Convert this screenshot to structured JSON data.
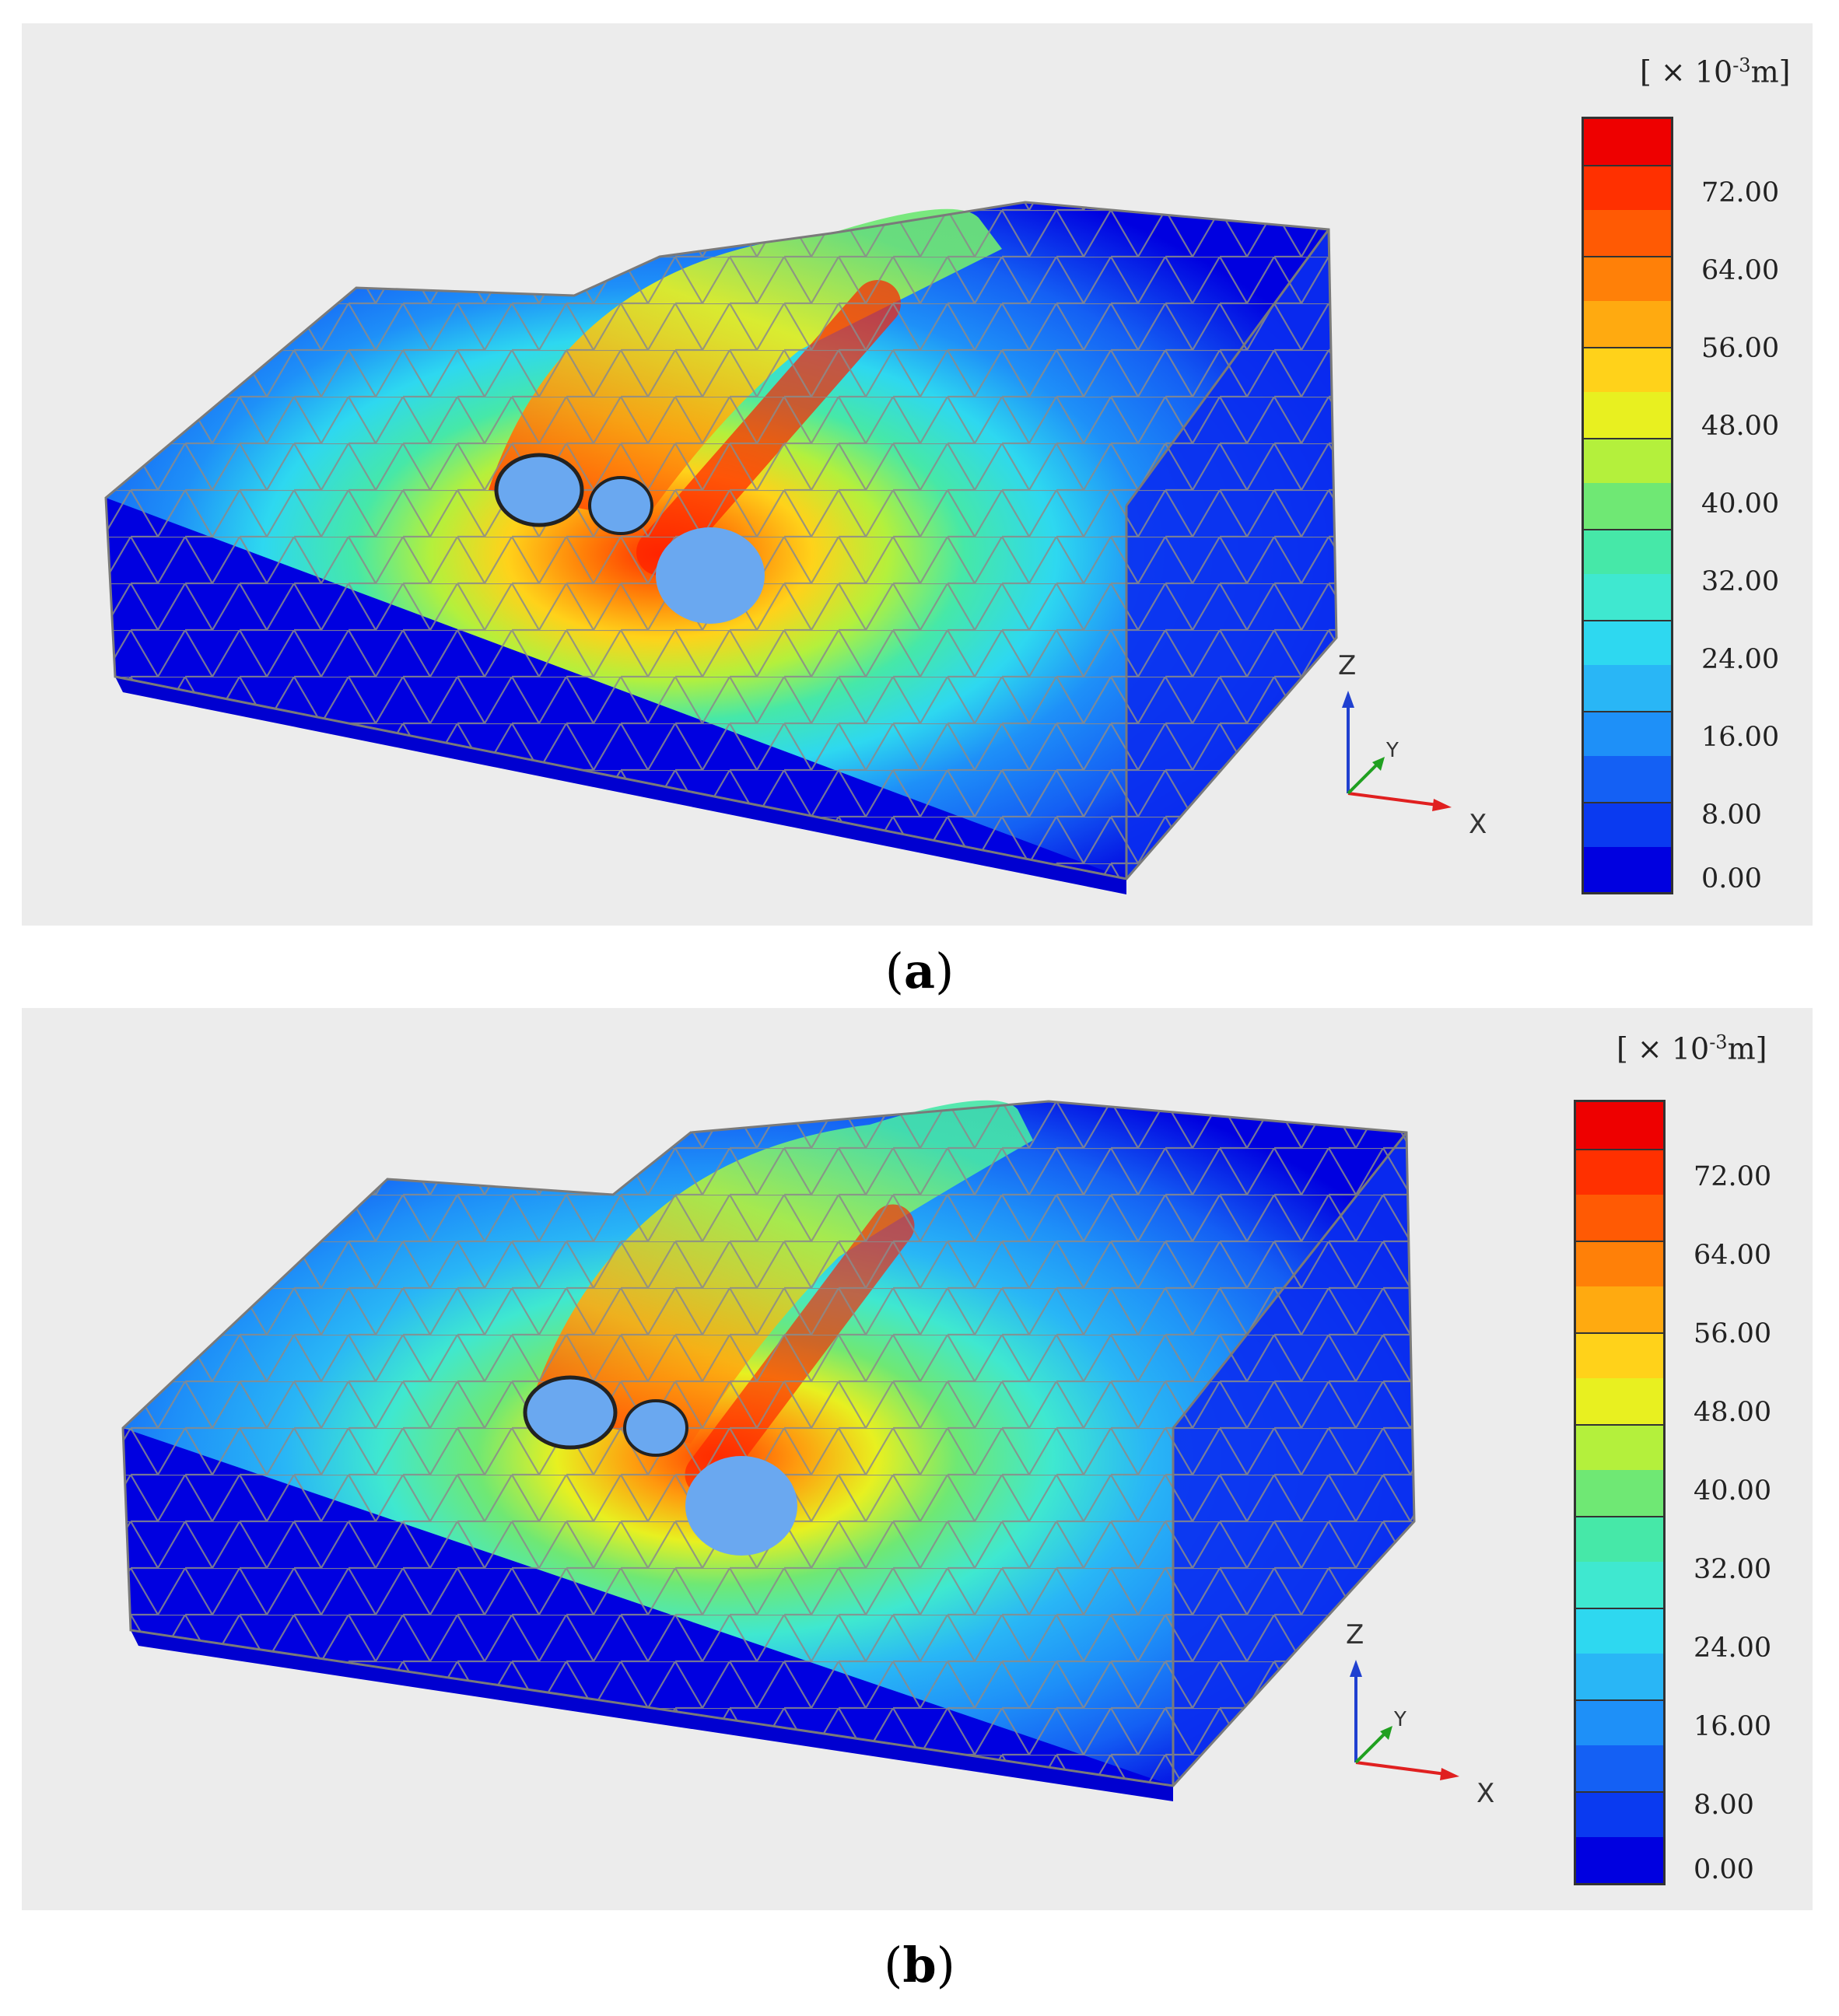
{
  "panels": [
    {
      "id": "a",
      "caption_letter": "a",
      "legend": {
        "unit_prefix": "[ × 10",
        "unit_exponent": "-3",
        "unit_suffix": "m]",
        "ticks": [
          "72.00",
          "64.00",
          "56.00",
          "48.00",
          "40.00",
          "32.00",
          "24.00",
          "16.00",
          "8.00",
          "0.00"
        ],
        "range": [
          0,
          72
        ],
        "colors": [
          "#0000e0",
          "#0a3af0",
          "#1460f4",
          "#1e90f8",
          "#29b6f6",
          "#2ed8f0",
          "#3fe8d0",
          "#46e8a8",
          "#6fe874",
          "#b4f03c",
          "#e8f020",
          "#ffd21a",
          "#ffaa10",
          "#ff8008",
          "#ff5a04",
          "#ff3000",
          "#ee0000"
        ]
      },
      "axes": {
        "z": "Z",
        "y": "Y",
        "x": "X"
      }
    },
    {
      "id": "b",
      "caption_letter": "b",
      "legend": {
        "unit_prefix": "[ × 10",
        "unit_exponent": "-3",
        "unit_suffix": "m]",
        "ticks": [
          "72.00",
          "64.00",
          "56.00",
          "48.00",
          "40.00",
          "32.00",
          "24.00",
          "16.00",
          "8.00",
          "0.00"
        ],
        "range": [
          0,
          72
        ],
        "colors": [
          "#0000e0",
          "#0a3af0",
          "#1460f4",
          "#1e90f8",
          "#29b6f6",
          "#2ed8f0",
          "#3fe8d0",
          "#46e8a8",
          "#6fe874",
          "#b4f03c",
          "#e8f020",
          "#ffd21a",
          "#ffaa10",
          "#ff8008",
          "#ff5a04",
          "#ff3000",
          "#ee0000"
        ]
      },
      "axes": {
        "z": "Z",
        "y": "Y",
        "x": "X"
      }
    }
  ]
}
